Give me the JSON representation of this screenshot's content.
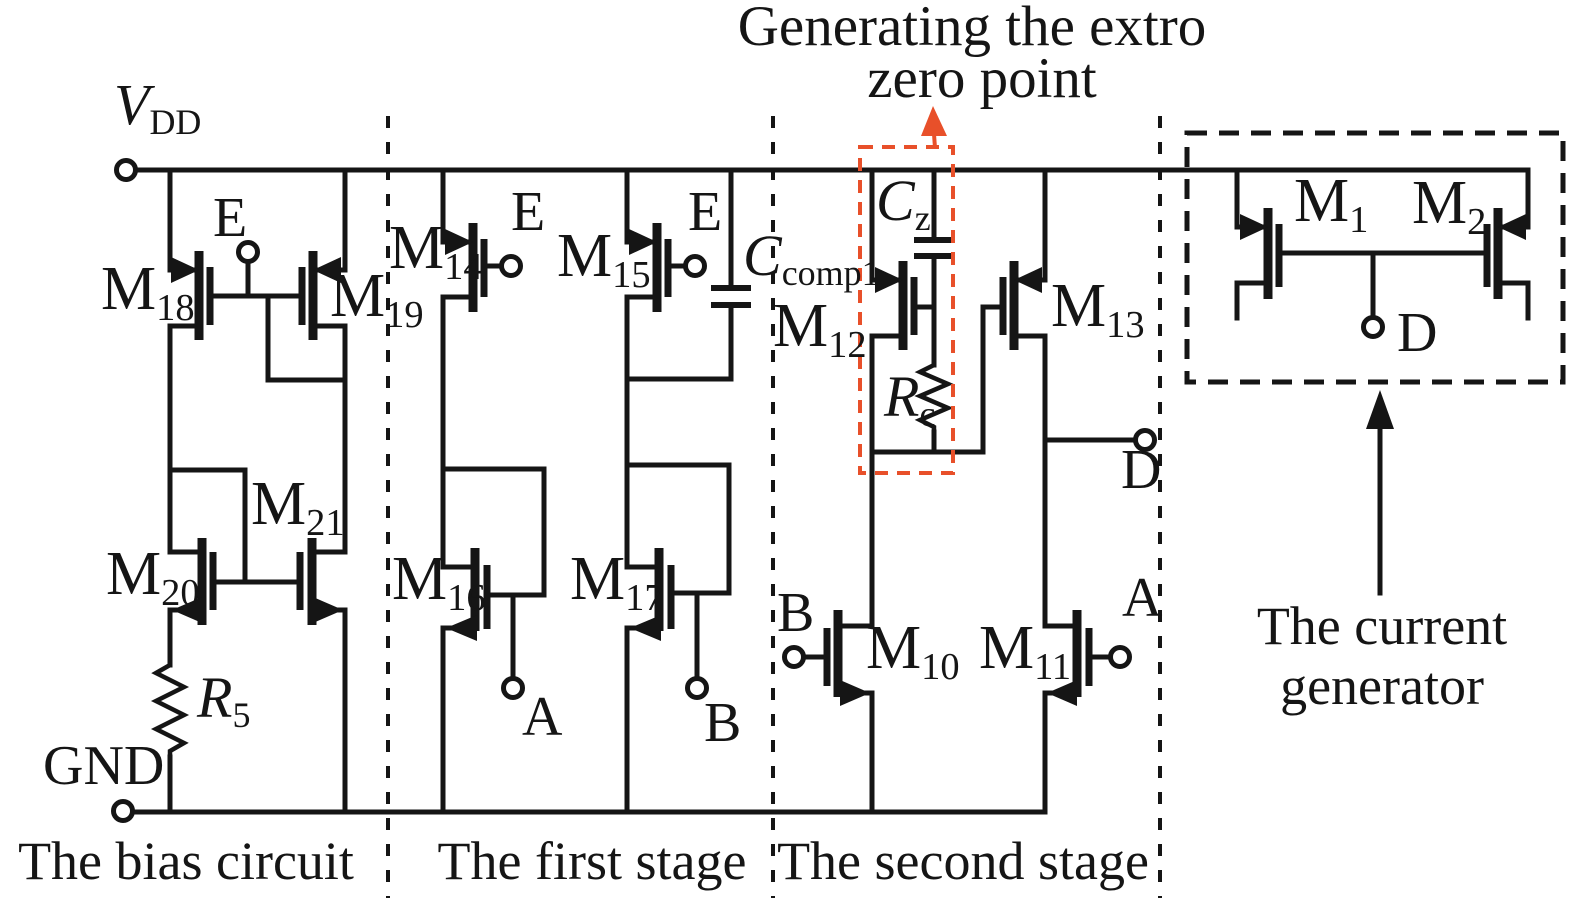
{
  "title": {
    "line1": "Generating the extro",
    "line2": "zero point"
  },
  "captions": {
    "bias": "The bias circuit",
    "first": "The first stage",
    "second": "The second stage",
    "gen_line1": "The current",
    "gen_line2": "generator"
  },
  "power": {
    "vdd": {
      "main": "V",
      "sub": "DD"
    },
    "gnd": {
      "text": "GND"
    }
  },
  "labels": {
    "m18": {
      "main": "M",
      "sub": "18"
    },
    "m19": {
      "main": "M",
      "sub": "19"
    },
    "m20": {
      "main": "M",
      "sub": "20"
    },
    "m21": {
      "main": "M",
      "sub": "21"
    },
    "r5": {
      "main": "R",
      "sub": "5"
    },
    "e_bias": {
      "text": "E"
    },
    "m14": {
      "main": "M",
      "sub": "14"
    },
    "m15": {
      "main": "M",
      "sub": "15"
    },
    "m16": {
      "main": "M",
      "sub": "16"
    },
    "m17": {
      "main": "M",
      "sub": "17"
    },
    "e_m14": {
      "text": "E"
    },
    "e_m15": {
      "text": "E"
    },
    "ccomp1": {
      "main": "C",
      "sub": "comp1"
    },
    "a_first": {
      "text": "A"
    },
    "b_first": {
      "text": "B"
    },
    "cz": {
      "main": "C",
      "sub": "z"
    },
    "rc": {
      "main": "R",
      "sub": "c"
    },
    "m12": {
      "main": "M",
      "sub": "12"
    },
    "m13": {
      "main": "M",
      "sub": "13"
    },
    "m10": {
      "main": "M",
      "sub": "10"
    },
    "m11": {
      "main": "M",
      "sub": "11"
    },
    "b_second": {
      "text": "B"
    },
    "a_second": {
      "text": "A"
    },
    "d_second": {
      "text": "D"
    },
    "m1": {
      "main": "M",
      "sub": "1"
    },
    "m2": {
      "main": "M",
      "sub": "2"
    },
    "d_gen": {
      "text": "D"
    }
  },
  "colors": {
    "ink": "#151515",
    "highlight": "#e8502a",
    "background": "#ffffff"
  }
}
